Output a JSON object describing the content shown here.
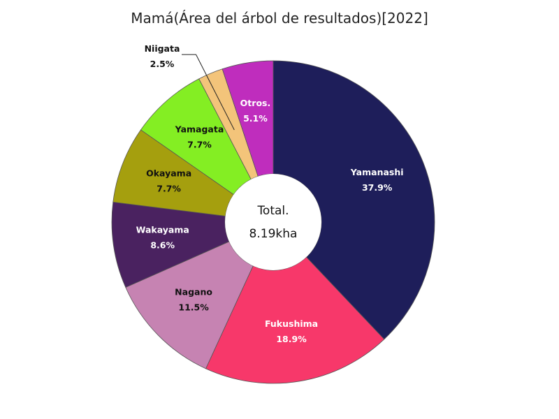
{
  "chart_data": {
    "type": "pie",
    "title": "Mamá(Área del árbol de resultados)[2022]",
    "center_label": "Total.",
    "center_value": "8.19kha",
    "slices": [
      {
        "name": "Yamanashi",
        "value": 37.9,
        "label": "37.9%",
        "color": "#1e1e5a",
        "text_color": "#ffffff"
      },
      {
        "name": "Fukushima",
        "value": 18.9,
        "label": "18.9%",
        "color": "#f7386a",
        "text_color": "#ffffff"
      },
      {
        "name": "Nagano",
        "value": 11.5,
        "label": "11.5%",
        "color": "#c683b2",
        "text_color": "#111111"
      },
      {
        "name": "Wakayama",
        "value": 8.6,
        "label": "8.6%",
        "color": "#4a2260",
        "text_color": "#ffffff"
      },
      {
        "name": "Okayama",
        "value": 7.7,
        "label": "7.7%",
        "color": "#a59f0e",
        "text_color": "#111111"
      },
      {
        "name": "Yamagata",
        "value": 7.7,
        "label": "7.7%",
        "color": "#84ee23",
        "text_color": "#111111"
      },
      {
        "name": "Niigata",
        "value": 2.5,
        "label": "2.5%",
        "color": "#f3c47a",
        "text_color": "#111111",
        "callout": true
      },
      {
        "name": "Otros.",
        "value": 5.1,
        "label": "5.1%",
        "color": "#bf2dbd",
        "text_color": "#ffffff"
      }
    ]
  }
}
